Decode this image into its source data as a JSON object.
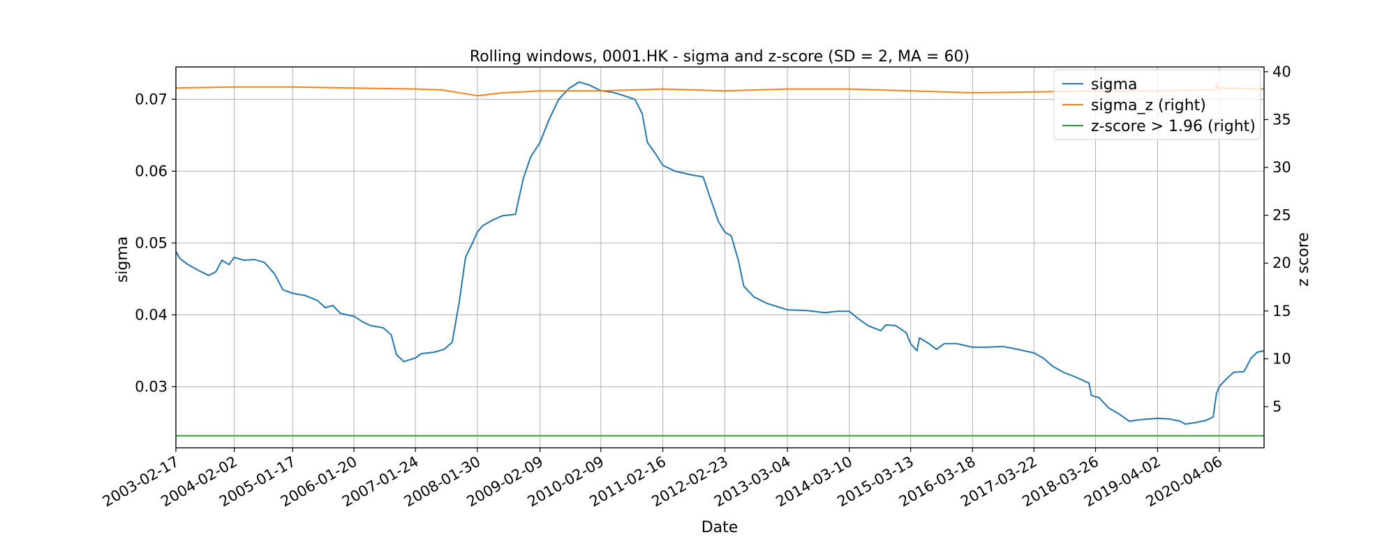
{
  "chart_data": {
    "type": "line",
    "title": "Rolling windows, 0001.HK - sigma and z-score (SD = 2, MA = 60)",
    "xlabel": "Date",
    "ylabel": "sigma",
    "y2label": "z score",
    "grid": true,
    "legend_position": "top-right",
    "xlim": [
      "2003-02-17",
      "2020-12-31"
    ],
    "ylim": [
      0.0215,
      0.0745
    ],
    "y2lim": [
      0.7,
      40.5
    ],
    "x_ticks": [
      "2003-02-17",
      "2004-02-02",
      "2005-01-17",
      "2006-01-20",
      "2007-01-24",
      "2008-01-30",
      "2009-02-09",
      "2010-02-09",
      "2011-02-16",
      "2012-02-23",
      "2013-03-04",
      "2014-03-10",
      "2015-03-13",
      "2016-03-18",
      "2017-03-22",
      "2018-03-26",
      "2019-04-02",
      "2020-04-06"
    ],
    "y_ticks": [
      "0.03",
      "0.04",
      "0.05",
      "0.06",
      "0.07"
    ],
    "y2_ticks": [
      "5",
      "10",
      "15",
      "20",
      "25",
      "30",
      "35",
      "40"
    ],
    "series": [
      {
        "name": "sigma",
        "axis": "left",
        "color": "#1f77b4",
        "points": [
          [
            "2003-02-17",
            0.0488
          ],
          [
            "2003-03-15",
            0.0478
          ],
          [
            "2003-05-01",
            0.047
          ],
          [
            "2003-07-01",
            0.0462
          ],
          [
            "2003-09-01",
            0.0455
          ],
          [
            "2003-10-15",
            0.046
          ],
          [
            "2003-11-20",
            0.0476
          ],
          [
            "2004-01-01",
            0.047
          ],
          [
            "2004-02-02",
            0.048
          ],
          [
            "2004-04-01",
            0.0476
          ],
          [
            "2004-06-01",
            0.0477
          ],
          [
            "2004-08-01",
            0.0473
          ],
          [
            "2004-10-01",
            0.0457
          ],
          [
            "2004-11-20",
            0.0435
          ],
          [
            "2005-01-17",
            0.043
          ],
          [
            "2005-04-01",
            0.0427
          ],
          [
            "2005-06-15",
            0.042
          ],
          [
            "2005-08-01",
            0.041
          ],
          [
            "2005-09-15",
            0.0413
          ],
          [
            "2005-11-01",
            0.0402
          ],
          [
            "2006-01-20",
            0.0398
          ],
          [
            "2006-03-15",
            0.039
          ],
          [
            "2006-05-01",
            0.0385
          ],
          [
            "2006-07-15",
            0.0382
          ],
          [
            "2006-09-01",
            0.0372
          ],
          [
            "2006-10-01",
            0.0345
          ],
          [
            "2006-11-15",
            0.0335
          ],
          [
            "2007-01-24",
            0.034
          ],
          [
            "2007-03-01",
            0.0346
          ],
          [
            "2007-05-15",
            0.0348
          ],
          [
            "2007-07-15",
            0.0352
          ],
          [
            "2007-09-01",
            0.0362
          ],
          [
            "2007-10-15",
            0.042
          ],
          [
            "2007-11-20",
            0.048
          ],
          [
            "2008-01-01",
            0.05
          ],
          [
            "2008-01-30",
            0.0515
          ],
          [
            "2008-03-01",
            0.0524
          ],
          [
            "2008-05-01",
            0.0532
          ],
          [
            "2008-07-01",
            0.0538
          ],
          [
            "2008-09-15",
            0.054
          ],
          [
            "2008-11-01",
            0.059
          ],
          [
            "2008-12-15",
            0.062
          ],
          [
            "2009-02-09",
            0.064
          ],
          [
            "2009-04-01",
            0.067
          ],
          [
            "2009-06-01",
            0.07
          ],
          [
            "2009-08-01",
            0.0715
          ],
          [
            "2009-10-01",
            0.0724
          ],
          [
            "2009-12-01",
            0.072
          ],
          [
            "2010-02-09",
            0.0712
          ],
          [
            "2010-04-15",
            0.071
          ],
          [
            "2010-06-15",
            0.0706
          ],
          [
            "2010-09-01",
            0.07
          ],
          [
            "2010-10-15",
            0.068
          ],
          [
            "2010-11-15",
            0.064
          ],
          [
            "2011-01-01",
            0.0625
          ],
          [
            "2011-02-16",
            0.0608
          ],
          [
            "2011-05-01",
            0.06
          ],
          [
            "2011-08-01",
            0.0595
          ],
          [
            "2011-10-15",
            0.0592
          ],
          [
            "2011-12-01",
            0.056
          ],
          [
            "2012-01-15",
            0.053
          ],
          [
            "2012-02-23",
            0.0515
          ],
          [
            "2012-04-01",
            0.051
          ],
          [
            "2012-05-15",
            0.0475
          ],
          [
            "2012-06-15",
            0.044
          ],
          [
            "2012-08-15",
            0.0425
          ],
          [
            "2012-11-01",
            0.0416
          ],
          [
            "2013-03-04",
            0.0407
          ],
          [
            "2013-07-01",
            0.0406
          ],
          [
            "2013-10-15",
            0.0403
          ],
          [
            "2014-01-01",
            0.0405
          ],
          [
            "2014-03-10",
            0.0405
          ],
          [
            "2014-05-01",
            0.0395
          ],
          [
            "2014-07-01",
            0.0385
          ],
          [
            "2014-09-15",
            0.0378
          ],
          [
            "2014-10-15",
            0.0386
          ],
          [
            "2014-12-15",
            0.0385
          ],
          [
            "2015-02-15",
            0.0375
          ],
          [
            "2015-03-13",
            0.036
          ],
          [
            "2015-04-20",
            0.035
          ],
          [
            "2015-05-05",
            0.0368
          ],
          [
            "2015-07-01",
            0.036
          ],
          [
            "2015-08-15",
            0.0352
          ],
          [
            "2015-10-01",
            0.036
          ],
          [
            "2015-12-15",
            0.036
          ],
          [
            "2016-03-18",
            0.0355
          ],
          [
            "2016-06-15",
            0.0355
          ],
          [
            "2016-09-15",
            0.0356
          ],
          [
            "2016-12-15",
            0.0352
          ],
          [
            "2017-03-22",
            0.0347
          ],
          [
            "2017-05-15",
            0.034
          ],
          [
            "2017-07-15",
            0.0328
          ],
          [
            "2017-09-15",
            0.032
          ],
          [
            "2017-12-01",
            0.0313
          ],
          [
            "2018-02-15",
            0.0305
          ],
          [
            "2018-03-01",
            0.0288
          ],
          [
            "2018-03-26",
            0.0286
          ],
          [
            "2018-04-15",
            0.0285
          ],
          [
            "2018-06-15",
            0.027
          ],
          [
            "2018-08-15",
            0.0262
          ],
          [
            "2018-10-15",
            0.0252
          ],
          [
            "2018-12-15",
            0.0254
          ],
          [
            "2019-04-02",
            0.0256
          ],
          [
            "2019-06-15",
            0.0255
          ],
          [
            "2019-08-15",
            0.0252
          ],
          [
            "2019-09-15",
            0.0248
          ],
          [
            "2019-11-15",
            0.025
          ],
          [
            "2020-01-15",
            0.0253
          ],
          [
            "2020-03-01",
            0.0258
          ],
          [
            "2020-03-20",
            0.029
          ],
          [
            "2020-04-06",
            0.03
          ],
          [
            "2020-05-15",
            0.031
          ],
          [
            "2020-07-01",
            0.032
          ],
          [
            "2020-09-01",
            0.0321
          ],
          [
            "2020-10-15",
            0.034
          ],
          [
            "2020-11-20",
            0.0348
          ],
          [
            "2020-12-31",
            0.035
          ]
        ]
      },
      {
        "name": "sigma_z (right)",
        "axis": "right",
        "color": "#ff7f0e",
        "points": [
          [
            "2003-02-17",
            38.3
          ],
          [
            "2004-02-02",
            38.4
          ],
          [
            "2005-01-17",
            38.4
          ],
          [
            "2006-01-20",
            38.3
          ],
          [
            "2007-01-24",
            38.2
          ],
          [
            "2007-07-01",
            38.1
          ],
          [
            "2008-01-30",
            37.5
          ],
          [
            "2008-07-01",
            37.8
          ],
          [
            "2009-02-09",
            38.0
          ],
          [
            "2010-02-09",
            38.0
          ],
          [
            "2011-02-16",
            38.2
          ],
          [
            "2012-02-23",
            38.0
          ],
          [
            "2013-03-04",
            38.2
          ],
          [
            "2014-03-10",
            38.2
          ],
          [
            "2015-03-13",
            38.0
          ],
          [
            "2016-03-18",
            37.8
          ],
          [
            "2017-03-22",
            37.9
          ],
          [
            "2018-03-26",
            38.0
          ],
          [
            "2019-04-02",
            38.0
          ],
          [
            "2020-03-15",
            38.1
          ],
          [
            "2020-03-20",
            38.8
          ],
          [
            "2020-03-25",
            38.3
          ],
          [
            "2020-12-31",
            38.2
          ]
        ]
      },
      {
        "name": "z-score > 1.96 (right)",
        "axis": "right",
        "color": "#2ca02c",
        "points": [
          [
            "2003-02-17",
            1.96
          ],
          [
            "2020-12-31",
            1.96
          ]
        ]
      }
    ]
  }
}
